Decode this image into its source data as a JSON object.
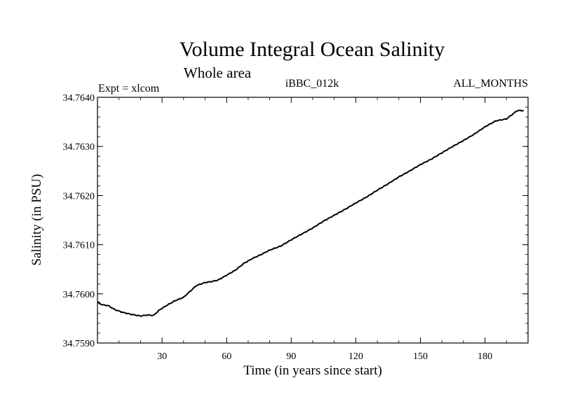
{
  "chart_data": {
    "type": "line",
    "title": "Volume Integral Ocean Salinity",
    "subtitle": "Whole area",
    "left_label": "Expt = xlcom",
    "center_label": "iBBC_012k",
    "right_label": "ALL_MONTHS",
    "xlabel": "Time (in years since start)",
    "ylabel": "Salinity (in PSU)",
    "xlim": [
      0,
      200
    ],
    "ylim": [
      34.759,
      34.764
    ],
    "x_ticks": [
      30,
      60,
      90,
      120,
      150,
      180
    ],
    "x_tick_labels": [
      "30",
      "60",
      "90",
      "120",
      "150",
      "180"
    ],
    "y_ticks": [
      34.759,
      34.76,
      34.761,
      34.762,
      34.763,
      34.764
    ],
    "y_tick_labels": [
      "34.7590",
      "34.7600",
      "34.7610",
      "34.7620",
      "34.7630",
      "34.7640"
    ],
    "grid": false,
    "series": [
      {
        "name": "iBBC_012k",
        "x": [
          0,
          2,
          5,
          8,
          12,
          16,
          20,
          23,
          26,
          29,
          32,
          36,
          40,
          43,
          46,
          50,
          53,
          56,
          60,
          64,
          68,
          72,
          76,
          80,
          85,
          90,
          95,
          100,
          105,
          110,
          115,
          120,
          125,
          130,
          135,
          140,
          145,
          150,
          155,
          160,
          165,
          170,
          175,
          180,
          185,
          190,
          195,
          198
        ],
        "y": [
          34.75984,
          34.75978,
          34.75976,
          34.75968,
          34.75962,
          34.75958,
          34.75955,
          34.75957,
          34.75956,
          34.75968,
          34.75976,
          34.75986,
          34.75993,
          34.76005,
          34.76017,
          34.76023,
          34.76025,
          34.76028,
          34.76038,
          34.76048,
          34.76062,
          34.76072,
          34.7608,
          34.76089,
          34.76097,
          34.7611,
          34.76122,
          34.76134,
          34.76148,
          34.7616,
          34.76172,
          34.76185,
          34.76197,
          34.76211,
          34.76224,
          34.76238,
          34.7625,
          34.76263,
          34.76274,
          34.76287,
          34.763,
          34.76312,
          34.76325,
          34.7634,
          34.76352,
          34.76356,
          34.76373,
          34.76373
        ]
      }
    ]
  }
}
